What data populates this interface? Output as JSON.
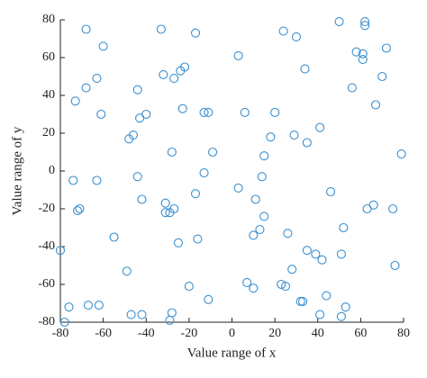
{
  "chart_data": {
    "type": "scatter",
    "xlabel": "Value range of x",
    "ylabel": "Value range of y",
    "color": "#3a8fd0",
    "xlim": [
      -80,
      80
    ],
    "ylim": [
      -80,
      80
    ],
    "xticks": [
      -80,
      -60,
      -40,
      -20,
      0,
      20,
      40,
      60,
      80
    ],
    "yticks": [
      -80,
      -60,
      -40,
      -20,
      0,
      20,
      40,
      60,
      80
    ],
    "x": [
      -68,
      -60,
      -33,
      -17,
      3,
      24,
      30,
      50,
      62,
      62,
      58,
      61,
      61,
      72,
      34,
      -22,
      -24,
      -32,
      -27,
      -63,
      -68,
      -44,
      -73,
      56,
      70,
      67,
      -23,
      -13,
      -11,
      6,
      20,
      -61,
      -40,
      -43,
      41,
      -46,
      -48,
      29,
      18,
      35,
      -9,
      -28,
      15,
      79,
      -13,
      -44,
      14,
      -74,
      -63,
      3,
      46,
      -17,
      -42,
      11,
      -31,
      -27,
      -31,
      -29,
      66,
      63,
      75,
      -71,
      -72,
      15,
      13,
      10,
      26,
      -55,
      -16,
      -25,
      52,
      35,
      39,
      42,
      -80,
      51,
      76,
      28,
      -49,
      7,
      23,
      25,
      10,
      -20,
      44,
      32,
      33,
      -11,
      -67,
      -62,
      -76,
      53,
      41,
      -47,
      -42,
      -28,
      51,
      -29,
      -78
    ],
    "values": [
      75,
      66,
      75,
      73,
      61,
      74,
      71,
      79,
      79,
      77,
      63,
      62,
      59,
      65,
      54,
      55,
      53,
      51,
      49,
      49,
      44,
      43,
      37,
      44,
      50,
      35,
      33,
      31,
      31,
      31,
      31,
      30,
      30,
      28,
      23,
      19,
      17,
      19,
      18,
      15,
      10,
      10,
      8,
      9,
      -1,
      -3,
      -3,
      -5,
      -5,
      -9,
      -11,
      -12,
      -15,
      -15,
      -17,
      -20,
      -22,
      -22,
      -18,
      -20,
      -20,
      -20,
      -21,
      -24,
      -31,
      -34,
      -33,
      -35,
      -36,
      -38,
      -30,
      -42,
      -44,
      -47,
      -42,
      -44,
      -50,
      -52,
      -53,
      -59,
      -60,
      -61,
      -62,
      -61,
      -66,
      -69,
      -69,
      -68,
      -71,
      -71,
      -72,
      -72,
      -76,
      -76,
      -76,
      -75,
      -77,
      -79,
      -80
    ]
  }
}
